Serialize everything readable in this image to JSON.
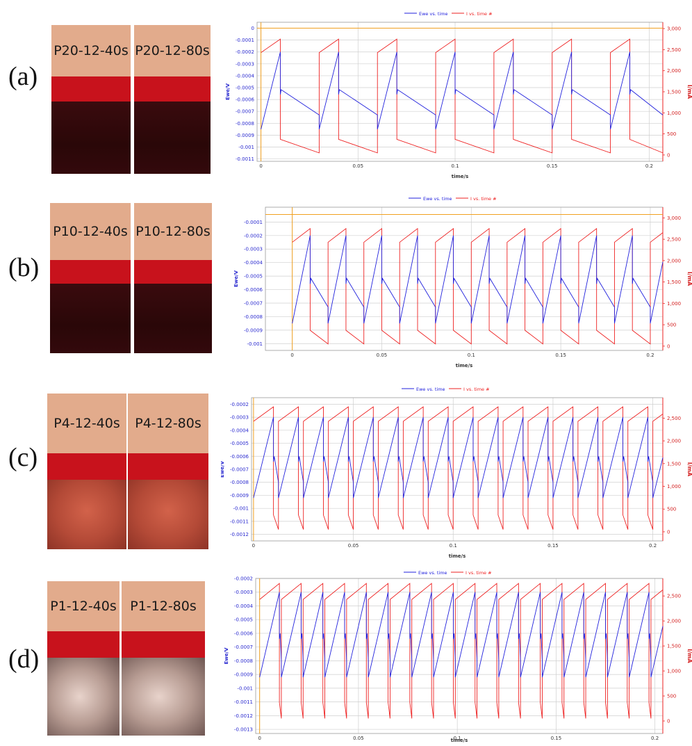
{
  "colors": {
    "ewe": "#2222dd",
    "current": "#ee2222",
    "baseline": "#f0a020",
    "grid": "#cfcfcf",
    "photo_label_bg": "#e2ab8c",
    "band": "#c8121c"
  },
  "legend": {
    "ewe": "Ewe vs. time",
    "current": "I vs. time #"
  },
  "axis_labels": {
    "x": "time/s",
    "y_left": "Ewe/V",
    "y_right": "I/mA"
  },
  "panels": [
    {
      "label": "(a)",
      "samples": [
        "P20-12-40s",
        "P20-12-80s"
      ],
      "sample_finish": "dark-red",
      "chart": {
        "period_s": 0.03,
        "duty_on_s": 0.01,
        "xlim": [
          -0.002,
          0.207
        ],
        "x_ticks": [
          "0",
          "0.05",
          "0.1",
          "0.15",
          "0.2"
        ],
        "y_left_ticks": [
          "0",
          "-0.0001",
          "-0.0002",
          "-0.0003",
          "-0.0004",
          "-0.0005",
          "-0.0006",
          "-0.0007",
          "-0.0008",
          "-0.0009",
          "-0.001",
          "-0.0011"
        ],
        "y_left_lim": [
          -0.00112,
          5e-05
        ],
        "y_right_ticks": [
          "3,000",
          "2,500",
          "2,000",
          "1,500",
          "1,000",
          "500",
          "0"
        ],
        "y_right_lim": [
          -150,
          3150
        ],
        "ewe_range_V": [
          -0.00085,
          -0.0002
        ],
        "current_range_mA": [
          50,
          2750
        ]
      }
    },
    {
      "label": "(b)",
      "samples": [
        "P10-12-40s",
        "P10-12-80s"
      ],
      "sample_finish": "dark-red",
      "chart": {
        "period_s": 0.02,
        "duty_on_s": 0.01,
        "xlim": [
          -0.015,
          0.207
        ],
        "x_ticks": [
          "0",
          "0.05",
          "0.1",
          "0.15",
          "0.2"
        ],
        "y_left_ticks": [
          "-0.0001",
          "-0.0002",
          "-0.0003",
          "-0.0004",
          "-0.0005",
          "-0.0006",
          "-0.0007",
          "-0.0008",
          "-0.0009",
          "-0.001"
        ],
        "y_left_lim": [
          -0.00105,
          1e-05
        ],
        "y_right_ticks": [
          "3,000",
          "2,500",
          "2,000",
          "1,500",
          "1,000",
          "500",
          "0"
        ],
        "y_right_lim": [
          -100,
          3250
        ],
        "ewe_range_V": [
          -0.00085,
          -0.0002
        ],
        "current_range_mA": [
          50,
          2750
        ]
      }
    },
    {
      "label": "(c)",
      "samples": [
        "P4-12-40s",
        "P4-12-80s"
      ],
      "sample_finish": "copper",
      "chart": {
        "period_s": 0.0125,
        "duty_on_s": 0.01,
        "xlim": [
          -0.001,
          0.205
        ],
        "x_ticks": [
          "0",
          "0.05",
          "0.1",
          "0.15",
          "0.2"
        ],
        "y_left_ticks": [
          "-0.0002",
          "-0.0003",
          "-0.0004",
          "-0.0005",
          "-0.0006",
          "-0.0007",
          "-0.0008",
          "-0.0009",
          "-0.001",
          "-0.0011",
          "-0.0012"
        ],
        "y_left_lim": [
          -0.00125,
          -0.00015
        ],
        "y_right_ticks": [
          "2,500",
          "2,000",
          "1,500",
          "1,000",
          "500",
          "0"
        ],
        "y_right_lim": [
          -200,
          2950
        ],
        "ewe_range_V": [
          -0.00092,
          -0.0003
        ],
        "current_range_mA": [
          50,
          2750
        ]
      }
    },
    {
      "label": "(d)",
      "samples": [
        "P1-12-40s",
        "P1-12-80s"
      ],
      "sample_finish": "silver",
      "chart": {
        "period_s": 0.011,
        "duty_on_s": 0.01,
        "xlim": [
          -0.002,
          0.204
        ],
        "x_ticks": [
          "0",
          "0.05",
          "0.1",
          "0.15",
          "0.2"
        ],
        "y_left_ticks": [
          "-0.0002",
          "-0.0003",
          "-0.0004",
          "-0.0005",
          "-0.0006",
          "-0.0007",
          "-0.0008",
          "-0.0009",
          "-0.001",
          "-0.0011",
          "-0.0012",
          "-0.0013"
        ],
        "y_left_lim": [
          -0.00133,
          -0.0002
        ],
        "y_right_ticks": [
          "2,500",
          "2,000",
          "1,500",
          "1,000",
          "500",
          "0"
        ],
        "y_right_lim": [
          -250,
          2850
        ],
        "ewe_range_V": [
          -0.00092,
          -0.0003
        ],
        "current_range_mA": [
          50,
          2750
        ]
      }
    }
  ],
  "chart_data": [
    {
      "type": "line",
      "panel": "(a)",
      "xlabel": "time/s",
      "ylabel": "Ewe/V",
      "y2label": "I/mA",
      "xlim": [
        -0.002,
        0.207
      ],
      "ylim": [
        -0.00112,
        5e-05
      ],
      "y2lim": [
        -150,
        3150
      ],
      "series": [
        {
          "name": "Ewe vs. time",
          "axis": "left",
          "pattern": "sawtooth",
          "period": 0.03,
          "min": -0.00085,
          "max": -0.0002
        },
        {
          "name": "I vs. time #",
          "axis": "right",
          "pattern": "pulse",
          "period": 0.03,
          "on": 0.01,
          "min": 50,
          "max": 2750
        }
      ],
      "grid": true,
      "legend": "top-center"
    },
    {
      "type": "line",
      "panel": "(b)",
      "xlabel": "time/s",
      "ylabel": "Ewe/V",
      "y2label": "I/mA",
      "xlim": [
        -0.015,
        0.207
      ],
      "ylim": [
        -0.00105,
        1e-05
      ],
      "y2lim": [
        -100,
        3250
      ],
      "series": [
        {
          "name": "Ewe vs. time",
          "axis": "left",
          "pattern": "sawtooth",
          "period": 0.02,
          "min": -0.00085,
          "max": -0.0002
        },
        {
          "name": "I vs. time #",
          "axis": "right",
          "pattern": "pulse",
          "period": 0.02,
          "on": 0.01,
          "min": 50,
          "max": 2750
        }
      ],
      "grid": true,
      "legend": "top-center"
    },
    {
      "type": "line",
      "panel": "(c)",
      "xlabel": "time/s",
      "ylabel": "Ewe/V",
      "y2label": "I/mA",
      "xlim": [
        -0.001,
        0.205
      ],
      "ylim": [
        -0.00125,
        -0.00015
      ],
      "y2lim": [
        -200,
        2950
      ],
      "series": [
        {
          "name": "Ewe vs. time",
          "axis": "left",
          "pattern": "sawtooth",
          "period": 0.0125,
          "min": -0.00092,
          "max": -0.0003
        },
        {
          "name": "I vs. time #",
          "axis": "right",
          "pattern": "pulse",
          "period": 0.0125,
          "on": 0.01,
          "min": 50,
          "max": 2750
        }
      ],
      "grid": true,
      "legend": "top-center"
    },
    {
      "type": "line",
      "panel": "(d)",
      "xlabel": "time/s",
      "ylabel": "Ewe/V",
      "y2label": "I/mA",
      "xlim": [
        -0.002,
        0.204
      ],
      "ylim": [
        -0.00133,
        -0.0002
      ],
      "y2lim": [
        -250,
        2850
      ],
      "series": [
        {
          "name": "Ewe vs. time",
          "axis": "left",
          "pattern": "sawtooth",
          "period": 0.011,
          "min": -0.00092,
          "max": -0.0003
        },
        {
          "name": "I vs. time #",
          "axis": "right",
          "pattern": "pulse",
          "period": 0.011,
          "on": 0.01,
          "min": 50,
          "max": 2750
        }
      ],
      "grid": true,
      "legend": "top-center"
    }
  ]
}
